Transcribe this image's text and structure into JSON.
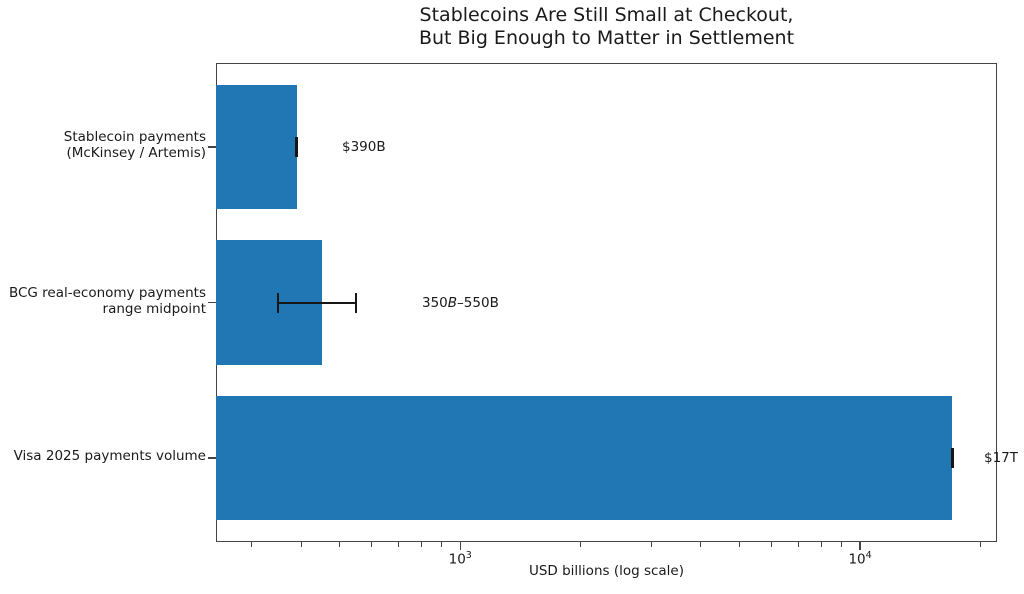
{
  "title": {
    "line1": "Stablecoins Are Still Small at Checkout,",
    "line2": "But Big Enough to Matter in Settlement"
  },
  "chart_data": {
    "type": "bar",
    "orientation": "horizontal",
    "x_scale": "log",
    "title": "Stablecoins Are Still Small at Checkout,\nBut Big Enough to Matter in Settlement",
    "xlabel": "USD billions (log scale)",
    "xlim": [
      245,
      22000
    ],
    "grid": false,
    "legend": false,
    "bar_color": "#2077b4",
    "axis_color": "#444444",
    "text_color": "#1a1a1a",
    "categories": [
      {
        "lines": [
          "Stablecoin payments",
          "(McKinsey / Artemis)"
        ]
      },
      {
        "lines": [
          "BCG real-economy payments",
          "range midpoint"
        ]
      },
      {
        "lines": [
          "Visa 2025 payments volume"
        ]
      }
    ],
    "values": [
      390,
      450,
      17000
    ],
    "errors": [
      {
        "low": 390,
        "high": 390
      },
      {
        "low": 350,
        "high": 550
      },
      {
        "low": 17000,
        "high": 17000
      }
    ],
    "annotations": [
      {
        "parts": [
          {
            "t": "$390B",
            "italic": false
          }
        ]
      },
      {
        "parts": [
          {
            "t": "350",
            "italic": false
          },
          {
            "t": "B",
            "italic": true
          },
          {
            "t": "–550B",
            "italic": false
          }
        ]
      },
      {
        "parts": [
          {
            "t": "$17T",
            "italic": false
          }
        ]
      }
    ],
    "x_major_ticks": [
      {
        "value": 1000,
        "label_base": "10",
        "label_exp": "3"
      },
      {
        "value": 10000,
        "label_base": "10",
        "label_exp": "4"
      }
    ]
  }
}
